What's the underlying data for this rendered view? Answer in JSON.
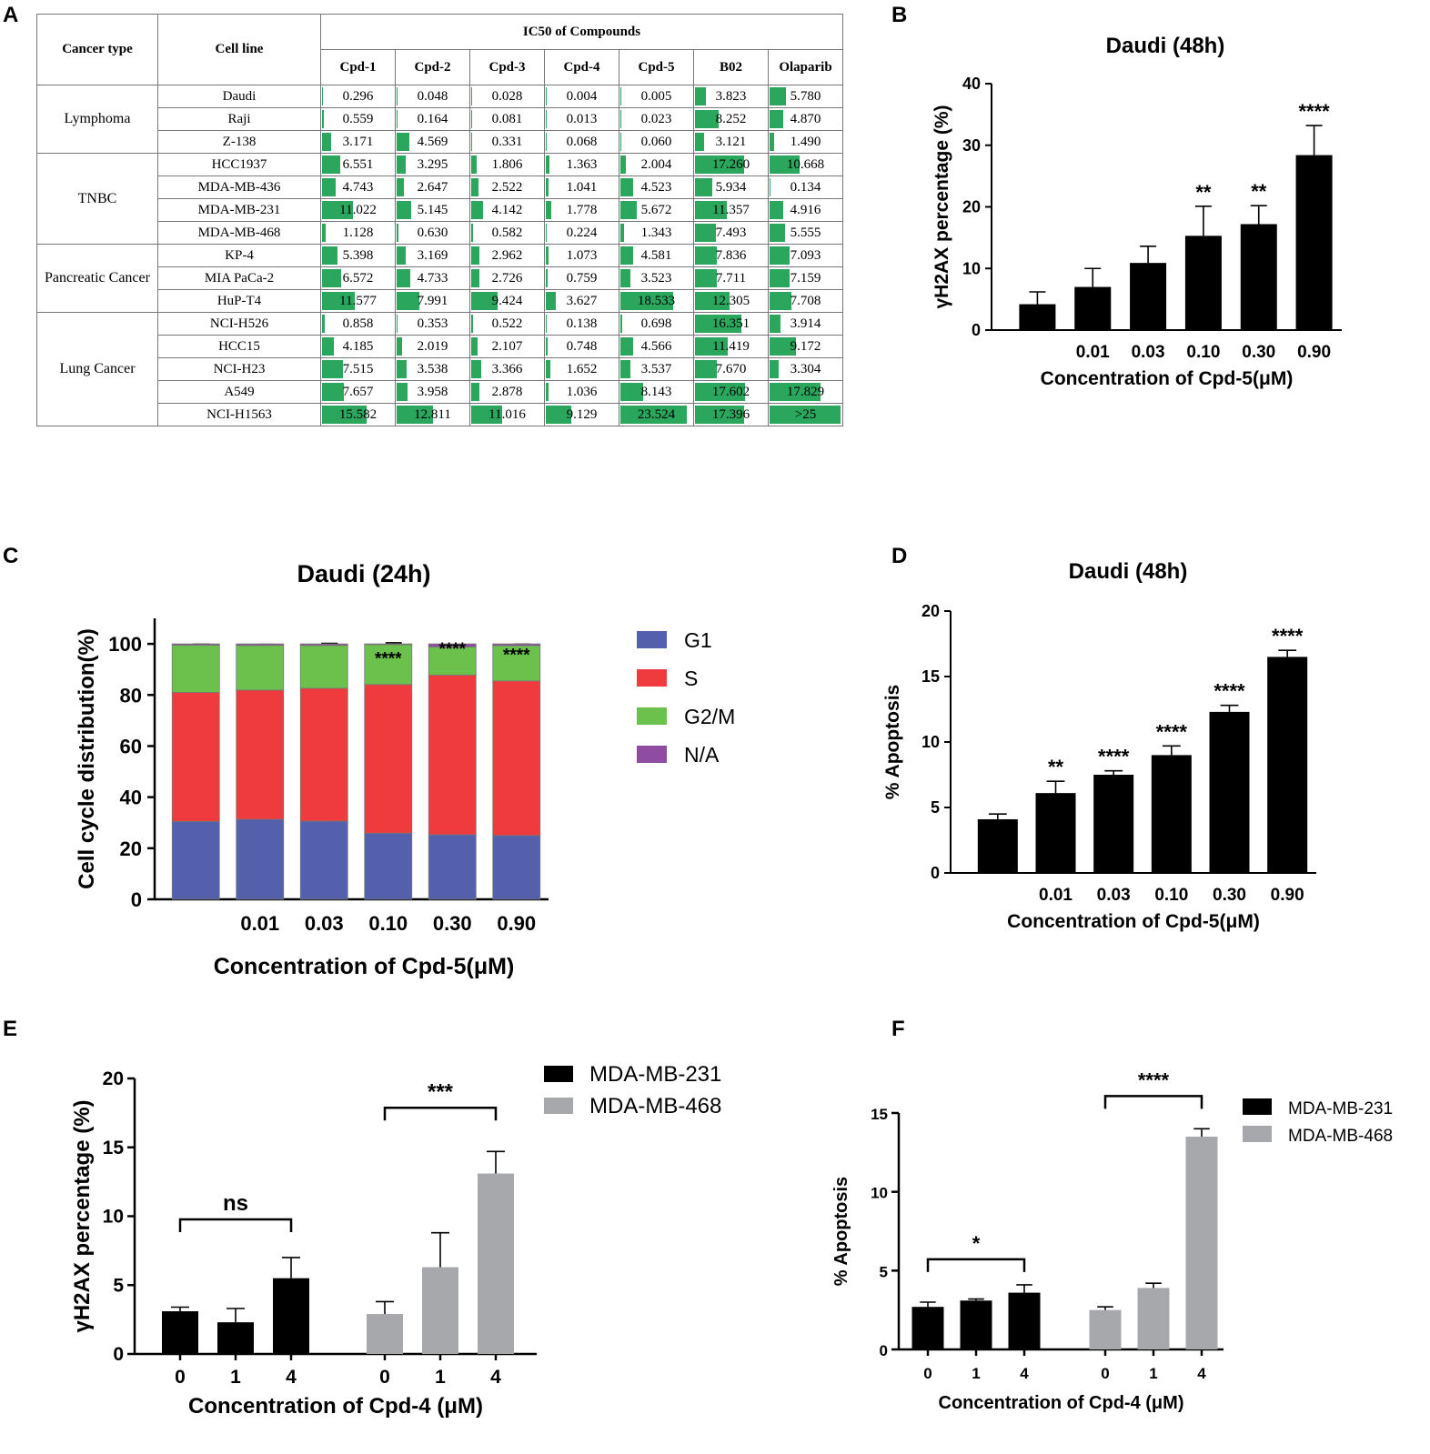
{
  "panel_labels": [
    "A",
    "B",
    "C",
    "D",
    "E",
    "F"
  ],
  "table": {
    "header": {
      "cancer_type": "Cancer type",
      "cell_line": "Cell line",
      "group_title": "IC50 of Compounds"
    },
    "compounds": [
      "Cpd-1",
      "Cpd-2",
      "Cpd-3",
      "Cpd-4",
      "Cpd-5",
      "B02",
      "Olaparib"
    ],
    "groups": [
      {
        "name": "Lymphoma",
        "rows": 3
      },
      {
        "name": "TNBC",
        "rows": 4
      },
      {
        "name": "Pancreatic Cancer",
        "rows": 3
      },
      {
        "name": "Lung Cancer",
        "rows": 5
      }
    ],
    "rows": [
      {
        "cell_line": "Daudi",
        "values": [
          "0.296",
          "0.048",
          "0.028",
          "0.004",
          "0.005",
          "3.823",
          "5.780"
        ]
      },
      {
        "cell_line": "Raji",
        "values": [
          "0.559",
          "0.164",
          "0.081",
          "0.013",
          "0.023",
          "8.252",
          "4.870"
        ]
      },
      {
        "cell_line": "Z-138",
        "values": [
          "3.171",
          "4.569",
          "0.331",
          "0.068",
          "0.060",
          "3.121",
          "1.490"
        ]
      },
      {
        "cell_line": "HCC1937",
        "values": [
          "6.551",
          "3.295",
          "1.806",
          "1.363",
          "2.004",
          "17.260",
          "10.668"
        ]
      },
      {
        "cell_line": "MDA-MB-436",
        "values": [
          "4.743",
          "2.647",
          "2.522",
          "1.041",
          "4.523",
          "5.934",
          "0.134"
        ]
      },
      {
        "cell_line": "MDA-MB-231",
        "values": [
          "11.022",
          "5.145",
          "4.142",
          "1.778",
          "5.672",
          "11.357",
          "4.916"
        ]
      },
      {
        "cell_line": "MDA-MB-468",
        "values": [
          "1.128",
          "0.630",
          "0.582",
          "0.224",
          "1.343",
          "7.493",
          "5.555"
        ]
      },
      {
        "cell_line": "KP-4",
        "values": [
          "5.398",
          "3.169",
          "2.962",
          "1.073",
          "4.581",
          "7.836",
          "7.093"
        ]
      },
      {
        "cell_line": "MIA PaCa-2",
        "values": [
          "6.572",
          "4.733",
          "2.726",
          "0.759",
          "3.523",
          "7.711",
          "7.159"
        ]
      },
      {
        "cell_line": "HuP-T4",
        "values": [
          "11.577",
          "7.991",
          "9.424",
          "3.627",
          "18.533",
          "12.305",
          "7.708"
        ]
      },
      {
        "cell_line": "NCI-H526",
        "values": [
          "0.858",
          "0.353",
          "0.522",
          "0.138",
          "0.698",
          "16.351",
          "3.914"
        ]
      },
      {
        "cell_line": "HCC15",
        "values": [
          "4.185",
          "2.019",
          "2.107",
          "0.748",
          "4.566",
          "11.419",
          "9.172"
        ]
      },
      {
        "cell_line": "NCI-H23",
        "values": [
          "7.515",
          "3.538",
          "3.366",
          "1.652",
          "3.537",
          "7.670",
          "3.304"
        ]
      },
      {
        "cell_line": "A549",
        "values": [
          "7.657",
          "3.958",
          "2.878",
          "1.036",
          "8.143",
          "17.602",
          "17.829"
        ]
      },
      {
        "cell_line": "NCI-H1563",
        "values": [
          "15.582",
          "12.811",
          "11.016",
          "9.129",
          "23.524",
          "17.396",
          ">25"
        ]
      }
    ],
    "bar_max": 25,
    "bar_color": "#2aa65d"
  },
  "chart_data": [
    {
      "panel": "B",
      "type": "bar",
      "title": "Daudi (48h)",
      "xlabel": "Concentration of Cpd-5(μM)",
      "ylabel": "γH2AX percentage (%)",
      "categories": [
        "",
        "0.01",
        "0.03",
        "0.10",
        "0.30",
        "0.90"
      ],
      "values": [
        4.2,
        7.0,
        10.9,
        15.3,
        17.2,
        28.4
      ],
      "errors": [
        2.0,
        3.0,
        2.7,
        4.8,
        3.0,
        4.8
      ],
      "significance": [
        "",
        "",
        "",
        "**",
        "**",
        "****"
      ],
      "ylim": [
        0,
        40
      ],
      "yticks": [
        0,
        10,
        20,
        30,
        40
      ],
      "color": "#000000"
    },
    {
      "panel": "C",
      "type": "stacked-bar",
      "title": "Daudi (24h)",
      "xlabel": "Concentration of Cpd-5(μM)",
      "ylabel": "Cell cycle distribution(%)",
      "categories": [
        "",
        "0.01",
        "0.03",
        "0.10",
        "0.30",
        "0.90"
      ],
      "series": [
        {
          "name": "G1",
          "color": "#5560ad",
          "values": [
            30.5,
            31.3,
            30.6,
            25.9,
            25.3,
            25.0
          ],
          "errors": [
            0.4,
            0.6,
            0.8,
            0.7,
            0.4,
            0.3
          ]
        },
        {
          "name": "S",
          "color": "#ef3b3e",
          "values": [
            50.5,
            50.6,
            52.0,
            58.2,
            62.5,
            60.5
          ],
          "errors": [
            0.8,
            1.3,
            2.3,
            1.0,
            0.7,
            0.5
          ]
        },
        {
          "name": "G2/M",
          "color": "#6cc14c",
          "values": [
            18.5,
            17.5,
            16.8,
            15.6,
            11.0,
            13.8
          ],
          "errors": [
            0.4,
            0.4,
            0.8,
            0.7,
            0.9,
            0.6
          ]
        },
        {
          "name": "N/A",
          "color": "#8e4da0",
          "values": [
            0.5,
            0.6,
            0.6,
            0.3,
            1.2,
            0.7
          ],
          "errors": [
            0,
            0,
            0,
            0,
            0,
            0
          ]
        }
      ],
      "significance": [
        "",
        "",
        "",
        "****",
        "****",
        "****"
      ],
      "ylim": [
        0,
        110
      ],
      "yticks": [
        0,
        20,
        40,
        60,
        80,
        100
      ]
    },
    {
      "panel": "D",
      "type": "bar",
      "title": "Daudi (48h)",
      "xlabel": "Concentration of Cpd-5(μM)",
      "ylabel": "% Apoptosis",
      "categories": [
        "",
        "0.01",
        "0.03",
        "0.10",
        "0.30",
        "0.90"
      ],
      "values": [
        4.1,
        6.1,
        7.5,
        9.0,
        12.3,
        16.5
      ],
      "errors": [
        0.4,
        0.9,
        0.3,
        0.7,
        0.5,
        0.5
      ],
      "significance": [
        "",
        "**",
        "****",
        "****",
        "****",
        "****"
      ],
      "ylim": [
        0,
        20
      ],
      "yticks": [
        0,
        5,
        10,
        15,
        20
      ],
      "color": "#000000"
    },
    {
      "panel": "E",
      "type": "grouped-bar",
      "xlabel": "Concentration of Cpd-4 (μM)",
      "ylabel": "γH2AX percentage (%)",
      "x": [
        "0",
        "1",
        "4"
      ],
      "series": [
        {
          "name": "MDA-MB-231",
          "color": "#000000",
          "values": [
            3.1,
            2.3,
            5.5
          ],
          "errors": [
            0.3,
            1.0,
            1.5
          ]
        },
        {
          "name": "MDA-MB-468",
          "color": "#a7a8ab",
          "values": [
            2.9,
            6.3,
            13.1
          ],
          "errors": [
            0.9,
            2.5,
            1.6
          ]
        }
      ],
      "brackets": [
        {
          "series": 0,
          "label": "ns"
        },
        {
          "series": 1,
          "label": "***"
        }
      ],
      "ylim": [
        0,
        20
      ],
      "yticks": [
        0,
        5,
        10,
        15,
        20
      ]
    },
    {
      "panel": "F",
      "type": "grouped-bar",
      "xlabel": "Concentration of Cpd-4 (μM)",
      "ylabel": "% Apoptosis",
      "x": [
        "0",
        "1",
        "4"
      ],
      "series": [
        {
          "name": "MDA-MB-231",
          "color": "#000000",
          "values": [
            2.7,
            3.1,
            3.6
          ],
          "errors": [
            0.3,
            0.1,
            0.5
          ]
        },
        {
          "name": "MDA-MB-468",
          "color": "#a7a8ab",
          "values": [
            2.5,
            3.9,
            13.5
          ],
          "errors": [
            0.2,
            0.3,
            0.5
          ]
        }
      ],
      "brackets": [
        {
          "series": 0,
          "label": "*"
        },
        {
          "series": 1,
          "label": "****"
        }
      ],
      "ylim": [
        0,
        15
      ],
      "yticks": [
        0,
        5,
        10,
        15
      ]
    }
  ]
}
